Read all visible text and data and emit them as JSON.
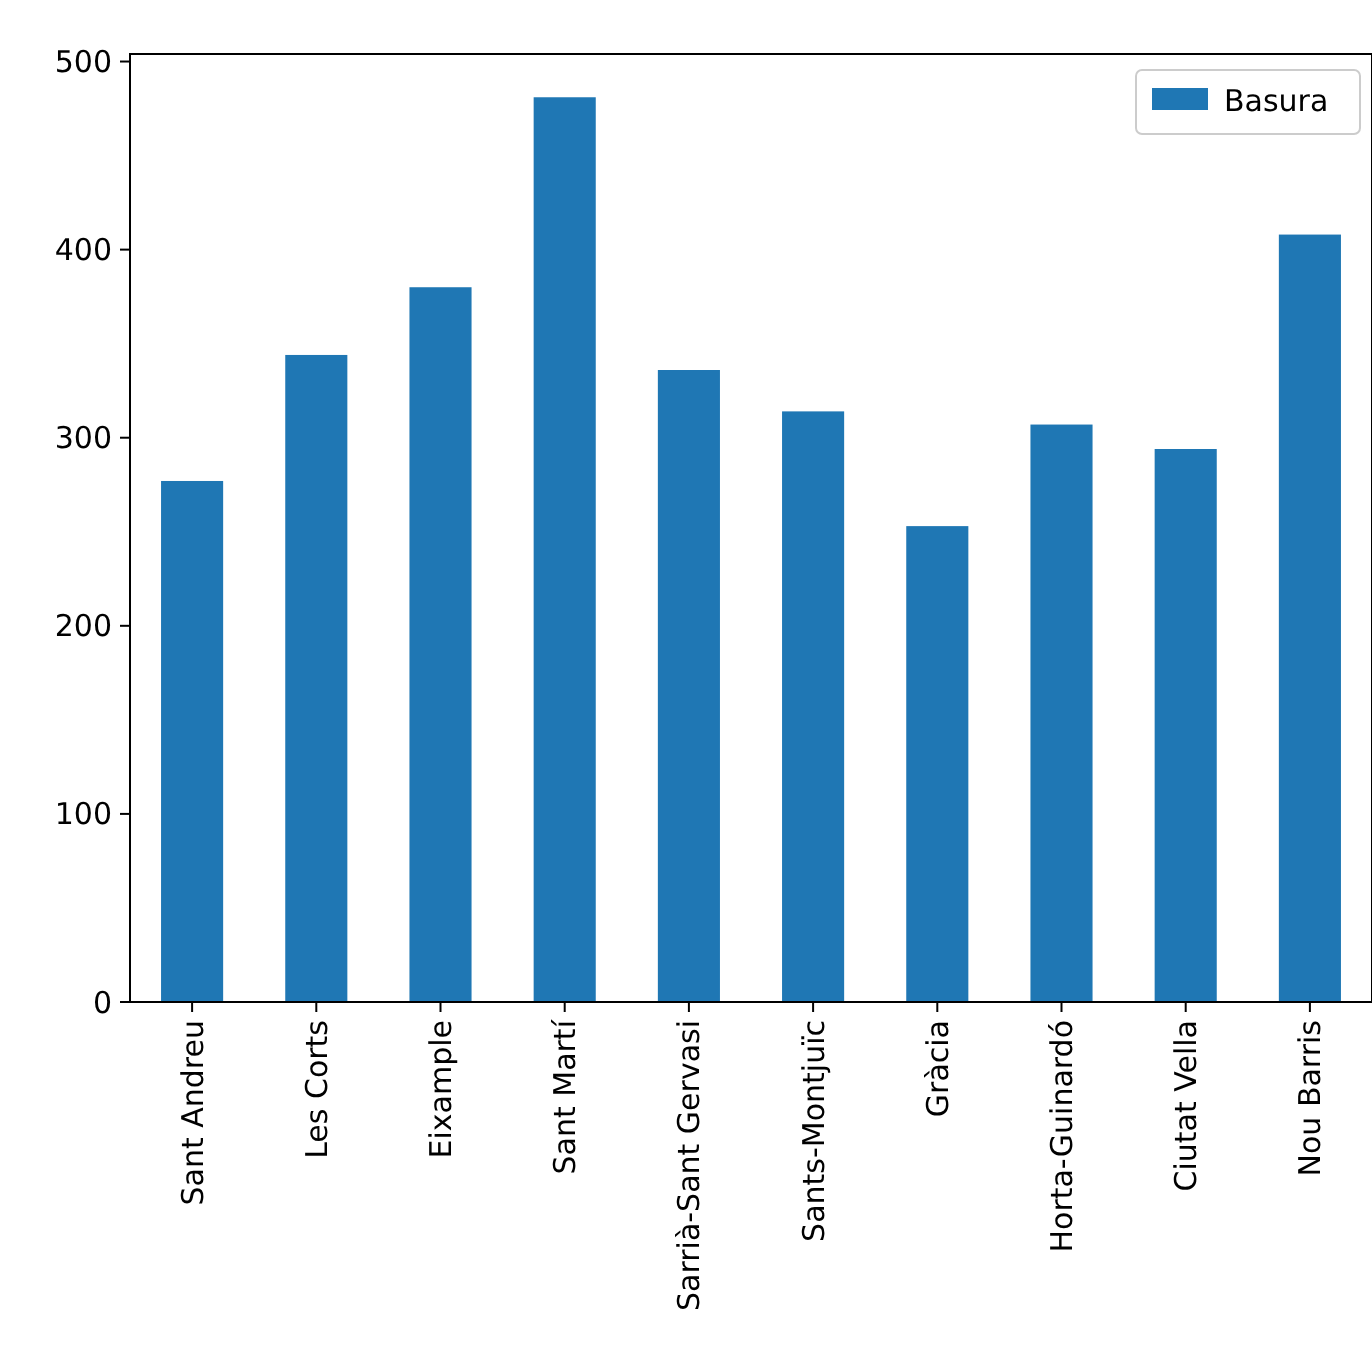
{
  "chart_data": {
    "type": "bar",
    "categories": [
      "Sant Andreu",
      "Les Corts",
      "Eixample",
      "Sant Martí",
      "Sarrià-Sant Gervasi",
      "Sants-Montjuïc",
      "Gràcia",
      "Horta-Guinardó",
      "Ciutat Vella",
      "Nou Barris"
    ],
    "series": [
      {
        "name": "Basura",
        "color": "#1f77b4",
        "values": [
          277,
          344,
          380,
          481,
          336,
          314,
          253,
          307,
          294,
          408
        ]
      }
    ],
    "ylim": [
      0,
      504
    ],
    "yticks": [
      0,
      100,
      200,
      300,
      400,
      500
    ],
    "legend": "top right"
  }
}
